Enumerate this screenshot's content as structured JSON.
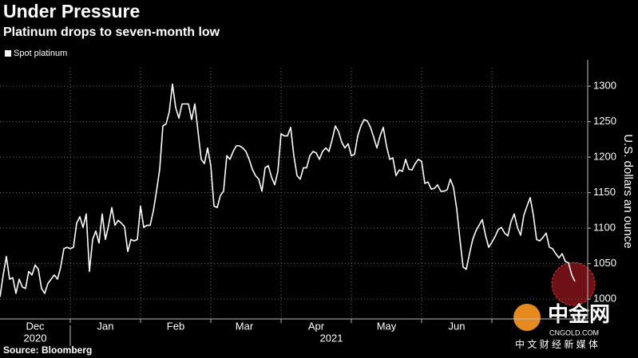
{
  "chart_data": {
    "type": "line",
    "title": "Under Pressure",
    "subtitle": "Platinum drops to seven-month low",
    "source": "Source: Bloomberg",
    "ylabel": "U.S. dollars an ounce",
    "legend": "top-left",
    "grid": true,
    "series": [
      {
        "name": "Spot platinum",
        "color": "#ffffff",
        "values": [
          1003,
          1034,
          1060,
          1028,
          1030,
          1008,
          1028,
          1017,
          1015,
          1039,
          1034,
          1048,
          1042,
          1015,
          1008,
          1022,
          1028,
          1034,
          1028,
          1045,
          1071,
          1073,
          1071,
          1073,
          1107,
          1116,
          1101,
          1120,
          1039,
          1084,
          1096,
          1079,
          1120,
          1084,
          1104,
          1129,
          1104,
          1111,
          1107,
          1102,
          1067,
          1084,
          1082,
          1084,
          1131,
          1101,
          1104,
          1104,
          1124,
          1152,
          1183,
          1244,
          1247,
          1264,
          1303,
          1270,
          1255,
          1275,
          1275,
          1275,
          1253,
          1275,
          1236,
          1197,
          1191,
          1213,
          1188,
          1131,
          1129,
          1146,
          1152,
          1202,
          1197,
          1208,
          1216,
          1216,
          1213,
          1208,
          1197,
          1183,
          1174,
          1169,
          1152,
          1185,
          1188,
          1172,
          1161,
          1180,
          1233,
          1230,
          1230,
          1242,
          1202,
          1174,
          1169,
          1185,
          1185,
          1202,
          1208,
          1206,
          1197,
          1208,
          1213,
          1208,
          1225,
          1244,
          1236,
          1221,
          1213,
          1219,
          1202,
          1204,
          1230,
          1244,
          1253,
          1251,
          1242,
          1228,
          1213,
          1230,
          1242,
          1216,
          1197,
          1199,
          1174,
          1182,
          1180,
          1197,
          1183,
          1182,
          1191,
          1197,
          1194,
          1163,
          1165,
          1155,
          1156,
          1161,
          1152,
          1152,
          1154,
          1169,
          1157,
          1127,
          1084,
          1045,
          1042,
          1064,
          1084,
          1096,
          1104,
          1112,
          1090,
          1073,
          1080,
          1088,
          1098,
          1101,
          1093,
          1089,
          1109,
          1120,
          1101,
          1090,
          1118,
          1131,
          1143,
          1118,
          1084,
          1082,
          1087,
          1093,
          1073,
          1071,
          1064,
          1058,
          1064,
          1053,
          1051,
          1034,
          1025
        ]
      }
    ],
    "xlim": [
      0,
      184
    ],
    "ylim": [
      972,
      1326
    ],
    "yticks": [
      1000,
      1050,
      1100,
      1150,
      1200,
      1250,
      1300
    ],
    "xticks": [
      {
        "value": 11,
        "label": "Dec"
      },
      {
        "value": 33,
        "label": "Jan"
      },
      {
        "value": 55,
        "label": "Feb"
      },
      {
        "value": 76.5,
        "label": "Mar"
      },
      {
        "value": 99,
        "label": "Apr"
      },
      {
        "value": 121,
        "label": "May"
      },
      {
        "value": 143,
        "label": "Jun"
      }
    ],
    "xgrid": [
      22,
      44,
      66,
      88,
      110,
      132,
      154
    ],
    "year_labels": [
      {
        "value": 11,
        "label": "2020"
      },
      {
        "value": 103.75,
        "label": "2021"
      }
    ]
  },
  "watermark": {
    "name": "中金网",
    "domain": "CNGOLD.COM",
    "tagline": "中 文 财 经 新 媒 体"
  }
}
